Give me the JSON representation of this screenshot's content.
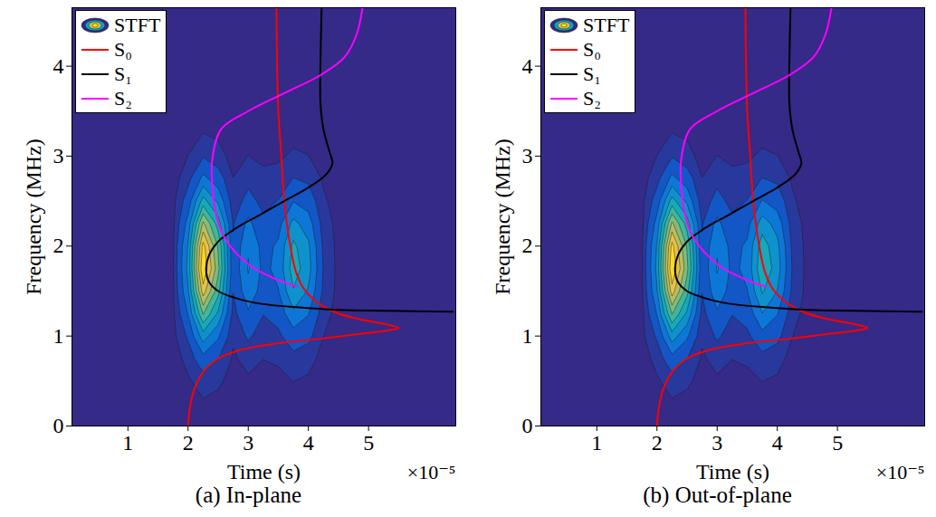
{
  "chart_data": [
    {
      "type": "contour",
      "title": "(a) In-plane",
      "xlabel": "Time (s)",
      "ylabel": "Frequency (MHz)",
      "annotations": [
        "×10⁻⁵"
      ],
      "xlim": [
        7e-07,
        6.45e-05
      ],
      "ylim": [
        0,
        4.65
      ],
      "xticks": [
        {
          "value": 1e-05,
          "label": "1"
        },
        {
          "value": 2e-05,
          "label": "2"
        },
        {
          "value": 3e-05,
          "label": "3"
        },
        {
          "value": 4e-05,
          "label": "4"
        },
        {
          "value": 5e-05,
          "label": "5"
        }
      ],
      "yticks": [
        0,
        1,
        2,
        3,
        4
      ],
      "legend": "top-left",
      "stft": {
        "name": "STFT",
        "time": [
          1.5e-05,
          1.75e-05,
          2e-05,
          2.25e-05,
          2.5e-05,
          2.75e-05,
          3e-05,
          3.25e-05,
          3.5e-05,
          3.75e-05,
          4e-05,
          4.25e-05,
          4.5e-05,
          4.75e-05
        ],
        "frequency": [
          0,
          0.25,
          0.5,
          0.75,
          1.0,
          1.25,
          1.5,
          1.75,
          2.0,
          2.25,
          2.5,
          2.75,
          3.0,
          3.25,
          3.5
        ],
        "values": [
          [
            0,
            0,
            0,
            0,
            0,
            0,
            0,
            0,
            0,
            0,
            0,
            0,
            0,
            0
          ],
          [
            0,
            0,
            0.01,
            0.02,
            0.01,
            0,
            0.01,
            0,
            0,
            0.01,
            0.01,
            0,
            0,
            0
          ],
          [
            0,
            0,
            0.02,
            0.06,
            0.04,
            0.01,
            0.02,
            0.01,
            0.01,
            0.03,
            0.02,
            0.01,
            0,
            0
          ],
          [
            0,
            0,
            0.05,
            0.16,
            0.1,
            0.02,
            0.05,
            0.03,
            0.04,
            0.07,
            0.05,
            0.01,
            0,
            0
          ],
          [
            0,
            0.01,
            0.11,
            0.34,
            0.21,
            0.04,
            0.11,
            0.06,
            0.08,
            0.15,
            0.12,
            0.03,
            0,
            0
          ],
          [
            0,
            0.01,
            0.2,
            0.59,
            0.37,
            0.07,
            0.18,
            0.1,
            0.13,
            0.27,
            0.2,
            0.05,
            0.01,
            0
          ],
          [
            0,
            0.02,
            0.28,
            0.83,
            0.52,
            0.1,
            0.26,
            0.15,
            0.19,
            0.38,
            0.28,
            0.08,
            0.01,
            0
          ],
          [
            0,
            0.02,
            0.32,
            0.97,
            0.61,
            0.12,
            0.3,
            0.17,
            0.22,
            0.44,
            0.33,
            0.09,
            0.01,
            0
          ],
          [
            0,
            0.02,
            0.3,
            0.91,
            0.57,
            0.11,
            0.28,
            0.16,
            0.21,
            0.41,
            0.31,
            0.08,
            0.01,
            0
          ],
          [
            0,
            0.01,
            0.23,
            0.7,
            0.44,
            0.09,
            0.22,
            0.12,
            0.16,
            0.32,
            0.24,
            0.06,
            0.01,
            0
          ],
          [
            0,
            0.01,
            0.14,
            0.43,
            0.27,
            0.05,
            0.13,
            0.07,
            0.1,
            0.19,
            0.15,
            0.04,
            0,
            0
          ],
          [
            0,
            0,
            0.07,
            0.22,
            0.14,
            0.03,
            0.07,
            0.04,
            0.05,
            0.1,
            0.08,
            0.02,
            0,
            0
          ],
          [
            0,
            0,
            0.03,
            0.09,
            0.05,
            0.01,
            0.03,
            0.02,
            0.02,
            0.04,
            0.03,
            0.01,
            0,
            0
          ],
          [
            0,
            0,
            0.01,
            0.03,
            0.02,
            0,
            0.01,
            0.01,
            0.01,
            0.01,
            0.01,
            0,
            0,
            0
          ],
          [
            0,
            0,
            0,
            0,
            0,
            0,
            0,
            0,
            0,
            0,
            0,
            0,
            0,
            0
          ]
        ]
      },
      "series": [
        {
          "name": "S₀",
          "color": "#ff0000",
          "x": [
            2e-05,
            2.03e-05,
            2.1e-05,
            2.25e-05,
            2.5e-05,
            2.9e-05,
            3.5e-05,
            4.2e-05,
            4.8e-05,
            5.3e-05,
            5.5e-05,
            5.3e-05,
            4.9e-05,
            4.5e-05,
            4.2e-05,
            3.95e-05,
            3.8e-05,
            3.7e-05,
            3.6e-05,
            3.55e-05,
            3.5e-05,
            3.48e-05,
            3.47e-05
          ],
          "y": [
            0,
            0.2,
            0.4,
            0.6,
            0.75,
            0.85,
            0.92,
            0.97,
            1.02,
            1.06,
            1.09,
            1.13,
            1.18,
            1.25,
            1.35,
            1.5,
            1.7,
            2.0,
            2.5,
            3.0,
            3.5,
            4.0,
            4.65
          ]
        },
        {
          "name": "S₁",
          "color": "#000000",
          "x": [
            6.4e-05,
            5.3e-05,
            4.5e-05,
            3.8e-05,
            3.2e-05,
            2.8e-05,
            2.5e-05,
            2.35e-05,
            2.3e-05,
            2.35e-05,
            2.5e-05,
            2.8e-05,
            3.2e-05,
            3.6e-05,
            4e-05,
            4.3e-05,
            4.4e-05,
            4.35e-05,
            4.25e-05,
            4.2e-05,
            4.2e-05,
            4.22e-05
          ],
          "y": [
            1.27,
            1.28,
            1.29,
            1.32,
            1.36,
            1.42,
            1.5,
            1.6,
            1.75,
            1.9,
            2.05,
            2.2,
            2.35,
            2.5,
            2.65,
            2.8,
            2.92,
            3.05,
            3.3,
            3.6,
            4.0,
            4.65
          ]
        },
        {
          "name": "S₂",
          "color": "#ff00ff",
          "x": [
            3.8e-05,
            3.4e-05,
            3e-05,
            2.6e-05,
            2.45e-05,
            2.4e-05,
            2.4e-05,
            2.55e-05,
            3e-05,
            3.6e-05,
            4.2e-05,
            4.6e-05,
            4.8e-05,
            4.9e-05
          ],
          "y": [
            1.55,
            1.65,
            1.8,
            2.1,
            2.4,
            2.7,
            2.95,
            3.3,
            3.5,
            3.7,
            3.9,
            4.1,
            4.35,
            4.65
          ]
        }
      ]
    },
    {
      "type": "contour",
      "title": "(b) Out-of-plane",
      "xlabel": "Time (s)",
      "ylabel": "Frequency (MHz)",
      "annotations": [
        "×10⁻⁵"
      ],
      "xlim": [
        7e-07,
        6.45e-05
      ],
      "ylim": [
        0,
        4.65
      ],
      "xticks": [
        {
          "value": 1e-05,
          "label": "1"
        },
        {
          "value": 2e-05,
          "label": "2"
        },
        {
          "value": 3e-05,
          "label": "3"
        },
        {
          "value": 4e-05,
          "label": "4"
        },
        {
          "value": 5e-05,
          "label": "5"
        }
      ],
      "yticks": [
        0,
        1,
        2,
        3,
        4
      ],
      "legend": "top-left",
      "stft": {
        "name": "STFT",
        "time": [
          1.5e-05,
          1.75e-05,
          2e-05,
          2.25e-05,
          2.5e-05,
          2.75e-05,
          3e-05,
          3.25e-05,
          3.5e-05,
          3.75e-05,
          4e-05,
          4.25e-05,
          4.5e-05,
          4.75e-05
        ],
        "frequency": [
          0,
          0.25,
          0.5,
          0.75,
          1.0,
          1.25,
          1.5,
          1.75,
          2.0,
          2.25,
          2.5,
          2.75,
          3.0,
          3.25,
          3.5
        ],
        "values": [
          [
            0,
            0,
            0,
            0,
            0,
            0,
            0,
            0,
            0,
            0,
            0,
            0,
            0,
            0
          ],
          [
            0,
            0,
            0.01,
            0.02,
            0.01,
            0,
            0.01,
            0,
            0,
            0.01,
            0.01,
            0,
            0,
            0
          ],
          [
            0,
            0,
            0.02,
            0.06,
            0.04,
            0.01,
            0.02,
            0.01,
            0.01,
            0.03,
            0.02,
            0.01,
            0,
            0
          ],
          [
            0,
            0,
            0.05,
            0.16,
            0.1,
            0.02,
            0.05,
            0.03,
            0.04,
            0.07,
            0.05,
            0.01,
            0,
            0
          ],
          [
            0,
            0.01,
            0.11,
            0.34,
            0.21,
            0.04,
            0.11,
            0.06,
            0.08,
            0.16,
            0.12,
            0.03,
            0,
            0
          ],
          [
            0,
            0.01,
            0.2,
            0.59,
            0.37,
            0.07,
            0.18,
            0.1,
            0.13,
            0.29,
            0.2,
            0.05,
            0.01,
            0
          ],
          [
            0,
            0.02,
            0.28,
            0.83,
            0.52,
            0.1,
            0.26,
            0.15,
            0.19,
            0.4,
            0.29,
            0.08,
            0.01,
            0
          ],
          [
            0,
            0.02,
            0.32,
            0.97,
            0.61,
            0.12,
            0.3,
            0.17,
            0.22,
            0.47,
            0.34,
            0.09,
            0.01,
            0
          ],
          [
            0,
            0.02,
            0.3,
            0.91,
            0.57,
            0.11,
            0.28,
            0.16,
            0.21,
            0.44,
            0.32,
            0.08,
            0.01,
            0
          ],
          [
            0,
            0.01,
            0.23,
            0.7,
            0.44,
            0.09,
            0.22,
            0.12,
            0.16,
            0.34,
            0.25,
            0.06,
            0.01,
            0
          ],
          [
            0,
            0.01,
            0.14,
            0.43,
            0.27,
            0.05,
            0.13,
            0.07,
            0.1,
            0.2,
            0.15,
            0.04,
            0,
            0
          ],
          [
            0,
            0,
            0.07,
            0.22,
            0.14,
            0.03,
            0.07,
            0.04,
            0.05,
            0.1,
            0.08,
            0.02,
            0,
            0
          ],
          [
            0,
            0,
            0.03,
            0.09,
            0.05,
            0.01,
            0.03,
            0.02,
            0.02,
            0.04,
            0.03,
            0.01,
            0,
            0
          ],
          [
            0,
            0,
            0.01,
            0.03,
            0.02,
            0,
            0.01,
            0.01,
            0.01,
            0.01,
            0.01,
            0,
            0,
            0
          ],
          [
            0,
            0,
            0,
            0,
            0,
            0,
            0,
            0,
            0,
            0,
            0,
            0,
            0,
            0
          ]
        ]
      },
      "series": [
        {
          "name": "S₀",
          "color": "#ff0000",
          "x": [
            2e-05,
            2.03e-05,
            2.1e-05,
            2.25e-05,
            2.5e-05,
            2.9e-05,
            3.5e-05,
            4.2e-05,
            4.8e-05,
            5.3e-05,
            5.5e-05,
            5.3e-05,
            4.9e-05,
            4.5e-05,
            4.2e-05,
            3.95e-05,
            3.8e-05,
            3.7e-05,
            3.6e-05,
            3.55e-05,
            3.5e-05,
            3.48e-05,
            3.47e-05
          ],
          "y": [
            0,
            0.2,
            0.4,
            0.6,
            0.75,
            0.85,
            0.92,
            0.97,
            1.02,
            1.06,
            1.09,
            1.13,
            1.18,
            1.25,
            1.35,
            1.5,
            1.7,
            2.0,
            2.5,
            3.0,
            3.5,
            4.0,
            4.65
          ]
        },
        {
          "name": "S₁",
          "color": "#000000",
          "x": [
            6.4e-05,
            5.3e-05,
            4.5e-05,
            3.8e-05,
            3.2e-05,
            2.8e-05,
            2.5e-05,
            2.35e-05,
            2.3e-05,
            2.35e-05,
            2.5e-05,
            2.8e-05,
            3.2e-05,
            3.6e-05,
            4e-05,
            4.3e-05,
            4.4e-05,
            4.35e-05,
            4.25e-05,
            4.2e-05,
            4.2e-05,
            4.22e-05
          ],
          "y": [
            1.27,
            1.28,
            1.29,
            1.32,
            1.36,
            1.42,
            1.5,
            1.6,
            1.75,
            1.9,
            2.05,
            2.2,
            2.35,
            2.5,
            2.65,
            2.8,
            2.92,
            3.05,
            3.3,
            3.6,
            4.0,
            4.65
          ]
        },
        {
          "name": "S₂",
          "color": "#ff00ff",
          "x": [
            3.8e-05,
            3.4e-05,
            3e-05,
            2.6e-05,
            2.45e-05,
            2.4e-05,
            2.4e-05,
            2.55e-05,
            3e-05,
            3.6e-05,
            4.2e-05,
            4.6e-05,
            4.8e-05,
            4.9e-05
          ],
          "y": [
            1.55,
            1.65,
            1.8,
            2.1,
            2.4,
            2.7,
            2.95,
            3.3,
            3.5,
            3.7,
            3.9,
            4.1,
            4.35,
            4.65
          ]
        }
      ]
    }
  ]
}
